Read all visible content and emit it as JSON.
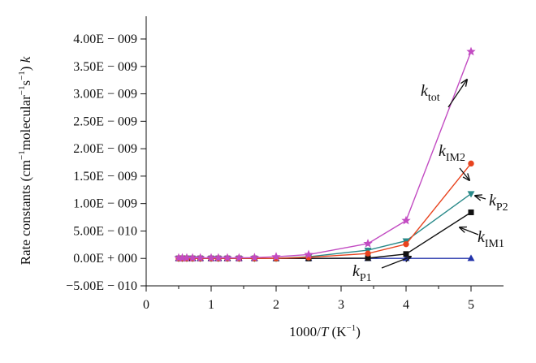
{
  "chart_data": {
    "type": "line",
    "xlabel": {
      "pre": "1000/",
      "var": "T",
      "post": " (K",
      "sup": "−1",
      "close": ")"
    },
    "ylabel": {
      "pre": "Rate constants (cm",
      "sup1": "−1",
      "mid": "molecular",
      "sup2": "−1",
      "s": "s",
      "sup3": "−1",
      "post": ") ",
      "var": "k"
    },
    "xlim": [
      0,
      5.5
    ],
    "ylim": [
      -5e-10,
      4e-09
    ],
    "x_ticks": [
      "0",
      "1",
      "2",
      "3",
      "4",
      "5"
    ],
    "x_tick_values": [
      0,
      1,
      2,
      3,
      4,
      5
    ],
    "y_ticks": [
      "−5.00E − 010",
      "0.00E + 000",
      "5.00E − 010",
      "1.00E − 009",
      "1.50E − 009",
      "2.00E − 009",
      "2.50E − 009",
      "3.00E − 009",
      "3.50E − 009",
      "4.00E − 009"
    ],
    "y_tick_values": [
      -5e-10,
      0,
      5e-10,
      1e-09,
      1.5e-09,
      2e-09,
      2.5e-09,
      3e-09,
      3.5e-09,
      4e-09
    ],
    "x": [
      0.5,
      0.556,
      0.625,
      0.714,
      0.833,
      1.0,
      1.111,
      1.25,
      1.429,
      1.667,
      2.0,
      2.5,
      3.413,
      4.0,
      5.0
    ],
    "series": [
      {
        "key": "kP1",
        "color": "#2233aa",
        "marker": "triangle",
        "values": [
          0,
          0,
          0,
          0,
          0,
          0,
          0,
          0,
          0,
          0,
          0,
          0,
          0,
          0,
          0
        ]
      },
      {
        "key": "kIM1",
        "color": "#111111",
        "marker": "square",
        "values": [
          0,
          0,
          0,
          0,
          0,
          0,
          0,
          0,
          0,
          0,
          0,
          0,
          5e-12,
          8e-11,
          8.4e-10
        ]
      },
      {
        "key": "kP2",
        "color": "#2a8a8a",
        "marker": "triangle-down",
        "values": [
          0,
          0,
          0,
          0,
          0,
          0,
          0,
          0,
          0,
          0,
          0,
          3e-11,
          1.5e-10,
          3.2e-10,
          1.18e-09
        ]
      },
      {
        "key": "kIM2",
        "color": "#e8431e",
        "marker": "circle",
        "values": [
          0,
          0,
          0,
          0,
          0,
          0,
          0,
          0,
          0,
          0,
          0,
          2e-11,
          9e-11,
          2.6e-10,
          1.73e-09
        ]
      },
      {
        "key": "ktot",
        "color": "#c24bc2",
        "marker": "star",
        "values": [
          1e-11,
          1e-11,
          1e-11,
          1e-11,
          1e-11,
          1e-11,
          1e-11,
          1e-11,
          1e-11,
          1.5e-11,
          3e-11,
          7e-11,
          2.7e-10,
          6.9e-10,
          3.77e-09
        ]
      }
    ],
    "annotations": [
      {
        "key": "ktot",
        "main": "k",
        "sub": "tot"
      },
      {
        "key": "kIM2",
        "main": "k",
        "sub": "IM2"
      },
      {
        "key": "kP2",
        "main": "k",
        "sub": "P2"
      },
      {
        "key": "kIM1",
        "main": "k",
        "sub": "IM1"
      },
      {
        "key": "kP1",
        "main": "k",
        "sub": "P1"
      }
    ]
  }
}
